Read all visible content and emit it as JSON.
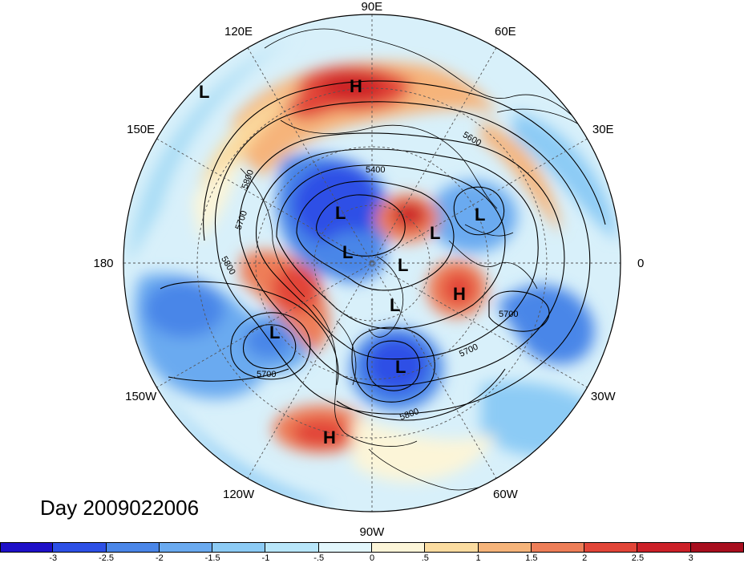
{
  "title": "Day 2009022006",
  "longitude_labels": [
    {
      "text": "90E",
      "lon": 90
    },
    {
      "text": "60E",
      "lon": 60
    },
    {
      "text": "30E",
      "lon": 30
    },
    {
      "text": "0",
      "lon": 0
    },
    {
      "text": "30W",
      "lon": -30
    },
    {
      "text": "60W",
      "lon": -60
    },
    {
      "text": "90W",
      "lon": -90
    },
    {
      "text": "120W",
      "lon": -120
    },
    {
      "text": "150W",
      "lon": -150
    },
    {
      "text": "180",
      "lon": 180
    },
    {
      "text": "150E",
      "lon": 150
    },
    {
      "text": "120E",
      "lon": 120
    }
  ],
  "pressure_centers": [
    {
      "type": "H",
      "id": "siberia-high"
    },
    {
      "type": "L",
      "id": "west-pacific-low"
    },
    {
      "type": "L",
      "id": "east-siberia-low"
    },
    {
      "type": "L",
      "id": "arctic-low"
    },
    {
      "type": "L",
      "id": "kara-low"
    },
    {
      "type": "L",
      "id": "barents-low"
    },
    {
      "type": "L",
      "id": "europe-low"
    },
    {
      "type": "H",
      "id": "atlantic-high"
    },
    {
      "type": "L",
      "id": "greenland-low"
    },
    {
      "type": "L",
      "id": "gulf-alaska-low"
    },
    {
      "type": "L",
      "id": "hudson-low"
    },
    {
      "type": "H",
      "id": "mexico-high"
    }
  ],
  "contour_labels": [
    "5400",
    "5700",
    "5800",
    "5800",
    "5600",
    "5700",
    "5700",
    "5700",
    "5800"
  ],
  "colorbar": {
    "ticks": [
      "-3",
      "-2.5",
      "-2",
      "-1.5",
      "-1",
      "-.5",
      "0",
      ".5",
      "1",
      "1.5",
      "2",
      "2.5",
      "3"
    ],
    "colors": [
      "#1e10c8",
      "#2d50e6",
      "#4a86e8",
      "#6aaaf0",
      "#8ccbf5",
      "#b8e6fa",
      "#e2f6fc",
      "#fcf5d8",
      "#fbdca0",
      "#f6b47a",
      "#ee7e58",
      "#e24538",
      "#cc2028",
      "#a80e1e"
    ]
  }
}
